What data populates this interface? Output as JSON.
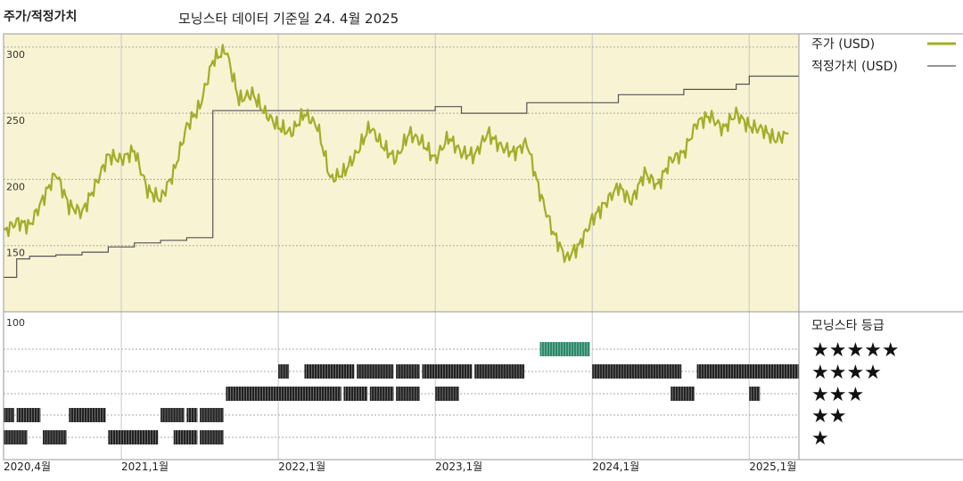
{
  "header": {
    "section_title": "주가/적정가치",
    "subtitle": "모닝스타 데이터 기준일 24. 4월 2025"
  },
  "legend": {
    "price_label": "주가 (USD)",
    "fair_value_label": "적정가치 (USD)",
    "rating_title": "모닝스타 등급",
    "price_color": "#a3ad2a",
    "fair_value_color": "#555555"
  },
  "rating_rows": [
    "★★★★★",
    "★★★★",
    "★★★",
    "★★",
    "★"
  ],
  "chart_data": {
    "type": "line",
    "title": "",
    "xlabel": "",
    "ylabel": "",
    "x_range": [
      "2020-04",
      "2025-04"
    ],
    "ylim": [
      100,
      310
    ],
    "y_ticks": [
      100,
      150,
      200,
      250,
      300
    ],
    "x_ticks": [
      "2020,4월",
      "2021,1월",
      "2022,1월",
      "2023,1월",
      "2024,1월",
      "2025,1월"
    ],
    "series": [
      {
        "name": "주가 (USD)",
        "points": [
          [
            "2020-04",
            160
          ],
          [
            "2020-05",
            168
          ],
          [
            "2020-06",
            165
          ],
          [
            "2020-07",
            185
          ],
          [
            "2020-08",
            205
          ],
          [
            "2020-09",
            180
          ],
          [
            "2020-10",
            175
          ],
          [
            "2020-11",
            195
          ],
          [
            "2020-12",
            218
          ],
          [
            "2021-01",
            215
          ],
          [
            "2021-02",
            222
          ],
          [
            "2021-03",
            192
          ],
          [
            "2021-04",
            185
          ],
          [
            "2021-05",
            205
          ],
          [
            "2021-06",
            240
          ],
          [
            "2021-07",
            255
          ],
          [
            "2021-08",
            290
          ],
          [
            "2021-09",
            298
          ],
          [
            "2021-10",
            260
          ],
          [
            "2021-11",
            265
          ],
          [
            "2021-12",
            250
          ],
          [
            "2022-01",
            240
          ],
          [
            "2022-02",
            235
          ],
          [
            "2022-03",
            250
          ],
          [
            "2022-04",
            240
          ],
          [
            "2022-05",
            200
          ],
          [
            "2022-06",
            205
          ],
          [
            "2022-07",
            220
          ],
          [
            "2022-08",
            240
          ],
          [
            "2022-09",
            225
          ],
          [
            "2022-10",
            215
          ],
          [
            "2022-11",
            235
          ],
          [
            "2022-12",
            228
          ],
          [
            "2023-01",
            215
          ],
          [
            "2023-02",
            232
          ],
          [
            "2023-03",
            220
          ],
          [
            "2023-04",
            218
          ],
          [
            "2023-05",
            235
          ],
          [
            "2023-06",
            225
          ],
          [
            "2023-07",
            220
          ],
          [
            "2023-08",
            228
          ],
          [
            "2023-09",
            190
          ],
          [
            "2023-10",
            160
          ],
          [
            "2023-11",
            140
          ],
          [
            "2023-12",
            150
          ],
          [
            "2024-01",
            170
          ],
          [
            "2024-02",
            182
          ],
          [
            "2024-03",
            195
          ],
          [
            "2024-04",
            183
          ],
          [
            "2024-05",
            205
          ],
          [
            "2024-06",
            195
          ],
          [
            "2024-07",
            215
          ],
          [
            "2024-08",
            220
          ],
          [
            "2024-09",
            243
          ],
          [
            "2024-10",
            248
          ],
          [
            "2024-11",
            238
          ],
          [
            "2024-12",
            250
          ],
          [
            "2025-01",
            240
          ],
          [
            "2025-02",
            238
          ],
          [
            "2025-03",
            230
          ],
          [
            "2025-04",
            235
          ]
        ]
      },
      {
        "name": "적정가치 (USD)",
        "points": [
          [
            "2020-04",
            126
          ],
          [
            "2020-05",
            140
          ],
          [
            "2020-06",
            142
          ],
          [
            "2020-08",
            143
          ],
          [
            "2020-10",
            145
          ],
          [
            "2020-12",
            149
          ],
          [
            "2021-02",
            152
          ],
          [
            "2021-04",
            154
          ],
          [
            "2021-06",
            156
          ],
          [
            "2021-08",
            252
          ],
          [
            "2022-12",
            252
          ],
          [
            "2023-01",
            255
          ],
          [
            "2023-03",
            250
          ],
          [
            "2023-08",
            258
          ],
          [
            "2024-03",
            264
          ],
          [
            "2024-08",
            268
          ],
          [
            "2024-12",
            272
          ],
          [
            "2025-01",
            278
          ],
          [
            "2025-04",
            278
          ]
        ]
      }
    ],
    "star_rating_bands": {
      "5": [
        [
          "2023-09",
          "2023-12"
        ]
      ],
      "4": [
        [
          "2022-01",
          "2022-01"
        ],
        [
          "2022-03",
          "2022-06"
        ],
        [
          "2022-07",
          "2022-09"
        ],
        [
          "2022-10",
          "2022-11"
        ],
        [
          "2022-12",
          "2023-03"
        ],
        [
          "2023-04",
          "2023-07"
        ],
        [
          "2024-01",
          "2024-07"
        ],
        [
          "2024-09",
          "2025-04"
        ]
      ],
      "3": [
        [
          "2021-09",
          "2022-05"
        ],
        [
          "2022-06",
          "2022-07"
        ],
        [
          "2022-08",
          "2022-09"
        ],
        [
          "2022-10",
          "2022-11"
        ],
        [
          "2023-01",
          "2023-02"
        ],
        [
          "2024-07",
          "2024-08"
        ],
        [
          "2025-01",
          "2025-01"
        ]
      ],
      "2": [
        [
          "2020-04",
          "2020-04"
        ],
        [
          "2020-05",
          "2020-06"
        ],
        [
          "2020-09",
          "2020-11"
        ],
        [
          "2021-04",
          "2021-05"
        ],
        [
          "2021-06",
          "2021-06"
        ],
        [
          "2021-07",
          "2021-08"
        ]
      ],
      "1": [
        [
          "2020-04",
          "2020-05"
        ],
        [
          "2020-07",
          "2020-08"
        ],
        [
          "2020-12",
          "2021-03"
        ],
        [
          "2021-05",
          "2021-06"
        ],
        [
          "2021-07",
          "2021-08"
        ]
      ]
    }
  }
}
